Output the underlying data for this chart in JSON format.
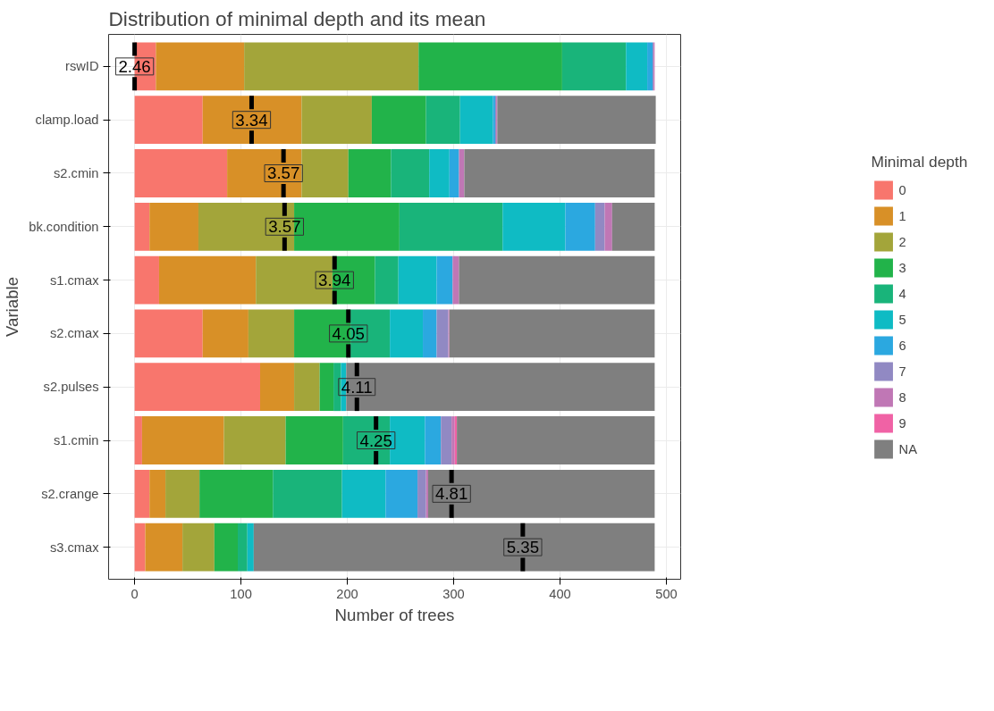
{
  "chart_data": {
    "type": "bar",
    "orientation": "horizontal",
    "stacked": true,
    "title": "Distribution of minimal depth and its mean",
    "xlabel": "Number of trees",
    "ylabel": "Variable",
    "legend_title": "Minimal depth",
    "categories": [
      "rswID",
      "clamp.load",
      "s2.cmin",
      "bk.condition",
      "s1.cmax",
      "s2.cmax",
      "s2.pulses",
      "s1.cmin",
      "s2.crange",
      "s3.cmax"
    ],
    "series": [
      {
        "name": "0",
        "color": "#f8766d",
        "values": [
          20,
          64,
          87,
          14,
          23,
          64,
          118,
          7,
          14,
          10
        ]
      },
      {
        "name": "1",
        "color": "#d89027",
        "values": [
          83,
          93,
          70,
          46,
          91,
          43,
          32,
          77,
          15,
          35
        ]
      },
      {
        "name": "2",
        "color": "#a3a53a",
        "values": [
          164,
          66,
          44,
          90,
          72,
          43,
          24,
          58,
          32,
          30
        ]
      },
      {
        "name": "3",
        "color": "#22b34a",
        "values": [
          135,
          51,
          40,
          99,
          40,
          53,
          13,
          54,
          69,
          22
        ]
      },
      {
        "name": "4",
        "color": "#19b47a",
        "values": [
          60,
          32,
          36,
          97,
          22,
          37,
          7,
          44,
          65,
          9
        ]
      },
      {
        "name": "5",
        "color": "#0fbbc4",
        "values": [
          20,
          31,
          19,
          59,
          36,
          31,
          5,
          33,
          41,
          6
        ]
      },
      {
        "name": "6",
        "color": "#2ba8e0",
        "values": [
          5,
          2,
          9,
          28,
          15,
          13,
          0,
          15,
          30,
          0
        ]
      },
      {
        "name": "7",
        "color": "#9189c3",
        "values": [
          1,
          1,
          0,
          9,
          0,
          11,
          0,
          10,
          8,
          0
        ]
      },
      {
        "name": "8",
        "color": "#c077b5",
        "values": [
          1,
          1,
          5,
          7,
          6,
          1,
          0,
          3,
          2,
          0
        ]
      },
      {
        "name": "9",
        "color": "#f062a5",
        "values": [
          0,
          0,
          0,
          0,
          0,
          0,
          0,
          2,
          0,
          0
        ]
      },
      {
        "name": "NA",
        "color": "#7f7f7f",
        "values": [
          0,
          149,
          179,
          40,
          184,
          193,
          290,
          186,
          213,
          377
        ]
      }
    ],
    "annotations": [
      {
        "text": "2.46",
        "x": 0,
        "y": "rswID"
      },
      {
        "text": "3.34",
        "x": 110,
        "y": "clamp.load"
      },
      {
        "text": "3.57",
        "x": 140,
        "y": "s2.cmin"
      },
      {
        "text": "3.57",
        "x": 141,
        "y": "bk.condition"
      },
      {
        "text": "3.94",
        "x": 188,
        "y": "s1.cmax"
      },
      {
        "text": "4.05",
        "x": 201,
        "y": "s2.cmax"
      },
      {
        "text": "4.11",
        "x": 209,
        "y": "s2.pulses"
      },
      {
        "text": "4.25",
        "x": 227,
        "y": "s1.cmin"
      },
      {
        "text": "4.81",
        "x": 298,
        "y": "s2.crange"
      },
      {
        "text": "5.35",
        "x": 365,
        "y": "s3.cmax"
      }
    ],
    "xlim": [
      -24.45,
      513.45
    ],
    "xticks": [
      0,
      100,
      200,
      300,
      400,
      500
    ],
    "grid": true,
    "legend": "right"
  }
}
